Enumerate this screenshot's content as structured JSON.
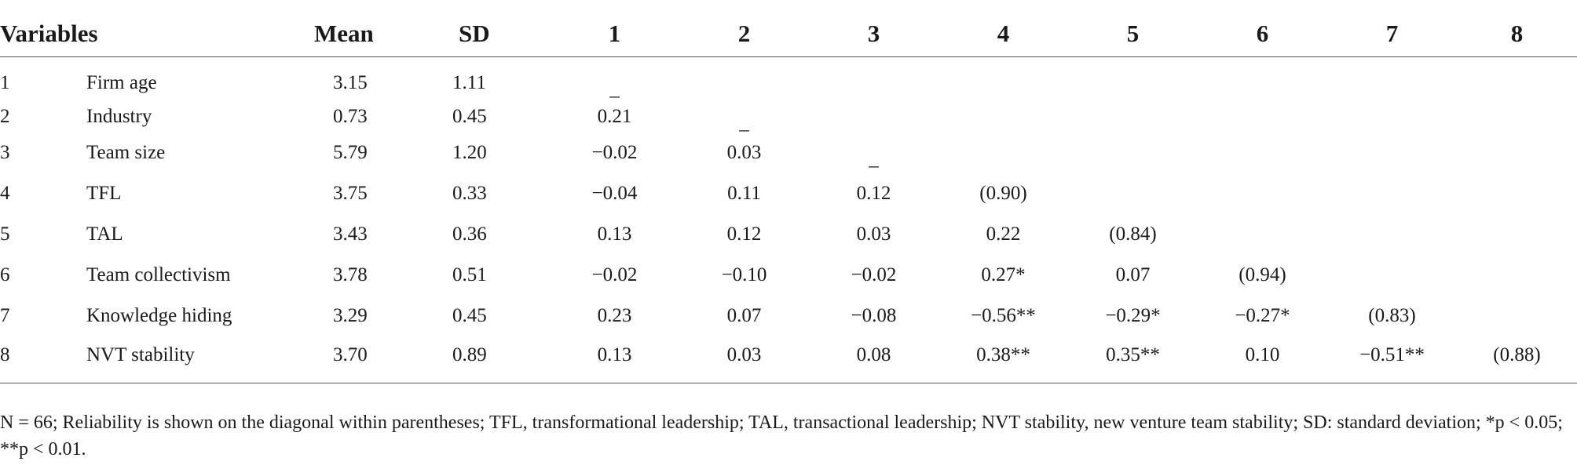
{
  "table": {
    "headers": [
      "Variables",
      "Mean",
      "SD",
      "1",
      "2",
      "3",
      "4",
      "5",
      "6",
      "7",
      "8"
    ],
    "rows": [
      {
        "num": "1",
        "name": "Firm age",
        "mean": "3.15",
        "sd": "1.11",
        "c": [
          "_",
          "",
          "",
          "",
          "",
          "",
          "",
          ""
        ]
      },
      {
        "num": "2",
        "name": "Industry",
        "mean": "0.73",
        "sd": "0.45",
        "c": [
          "0.21",
          "_",
          "",
          "",
          "",
          "",
          "",
          ""
        ]
      },
      {
        "num": "3",
        "name": "Team size",
        "mean": "5.79",
        "sd": "1.20",
        "c": [
          "−0.02",
          "0.03",
          "_",
          "",
          "",
          "",
          "",
          ""
        ]
      },
      {
        "num": "4",
        "name": "TFL",
        "mean": "3.75",
        "sd": "0.33",
        "c": [
          "−0.04",
          "0.11",
          "0.12",
          "(0.90)",
          "",
          "",
          "",
          ""
        ]
      },
      {
        "num": "5",
        "name": "TAL",
        "mean": "3.43",
        "sd": "0.36",
        "c": [
          "0.13",
          "0.12",
          "0.03",
          "0.22",
          "(0.84)",
          "",
          "",
          ""
        ]
      },
      {
        "num": "6",
        "name": "Team collectivism",
        "mean": "3.78",
        "sd": "0.51",
        "c": [
          "−0.02",
          "−0.10",
          "−0.02",
          "0.27*",
          "0.07",
          "(0.94)",
          "",
          ""
        ]
      },
      {
        "num": "7",
        "name": "Knowledge hiding",
        "mean": "3.29",
        "sd": "0.45",
        "c": [
          "0.23",
          "0.07",
          "−0.08",
          "−0.56**",
          "−0.29*",
          "−0.27*",
          "(0.83)",
          ""
        ]
      },
      {
        "num": "8",
        "name": "NVT stability",
        "mean": "3.70",
        "sd": "0.89",
        "c": [
          "0.13",
          "0.03",
          "0.08",
          "0.38**",
          "0.35**",
          "0.10",
          "−0.51**",
          "(0.88)"
        ]
      }
    ]
  },
  "note": "N = 66; Reliability is shown on the diagonal within parentheses; TFL, transformational leadership; TAL, transactional leadership; NVT stability, new venture team stability; SD: standard deviation; *p < 0.05; **p < 0.01."
}
